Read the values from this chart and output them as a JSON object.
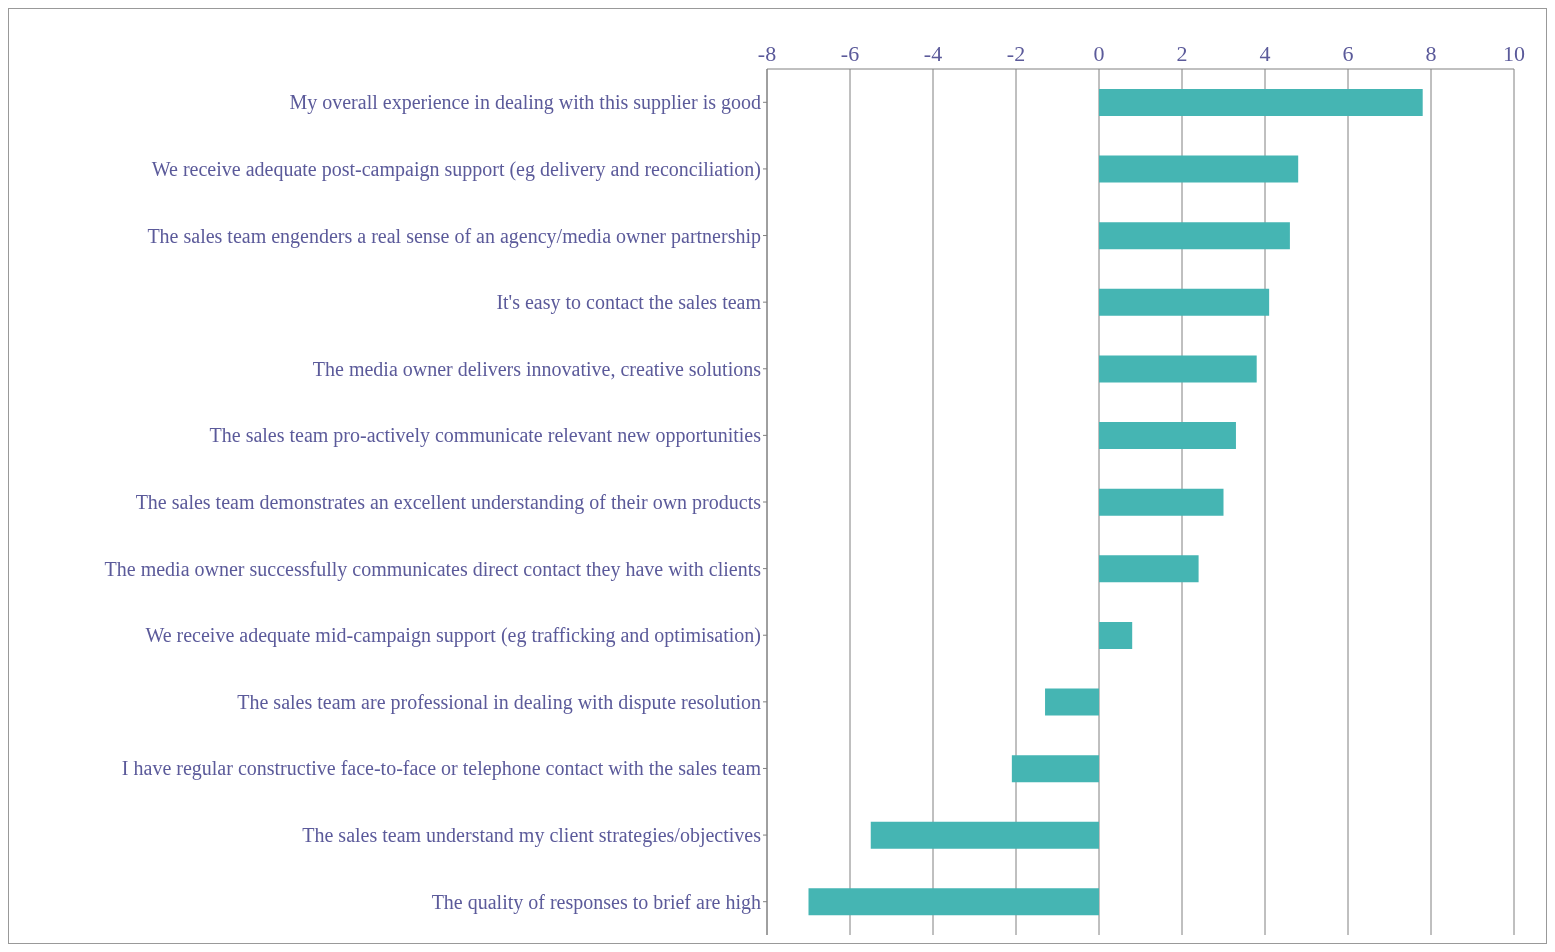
{
  "chart_data": {
    "type": "bar",
    "orientation": "horizontal",
    "categories": [
      "My overall experience in dealing with this supplier is good",
      "We receive adequate post-campaign support (eg delivery and reconciliation)",
      "The sales team engenders a real sense of an agency/media owner partnership",
      "It's easy to contact the sales team",
      "The media owner delivers innovative, creative solutions",
      "The sales team pro-actively communicate relevant new opportunities",
      "The sales team demonstrates an excellent understanding of their own products",
      "The media owner successfully communicates direct contact they have with clients",
      "We receive adequate mid-campaign support (eg trafficking and optimisation)",
      "The sales team are professional in dealing with dispute resolution",
      "I have regular constructive face-to-face or telephone contact with the sales team",
      "The sales team understand my client strategies/objectives",
      "The quality of responses to brief are high"
    ],
    "values": [
      7.8,
      4.8,
      4.6,
      4.1,
      3.8,
      3.3,
      3.0,
      2.4,
      0.8,
      -1.3,
      -2.1,
      -5.5,
      -7.0
    ],
    "color": "#45b5b3",
    "xlim": [
      -8,
      10
    ],
    "xticks": [
      -8,
      -6,
      -4,
      -2,
      0,
      2,
      4,
      6,
      8,
      10
    ],
    "grid": "x"
  }
}
